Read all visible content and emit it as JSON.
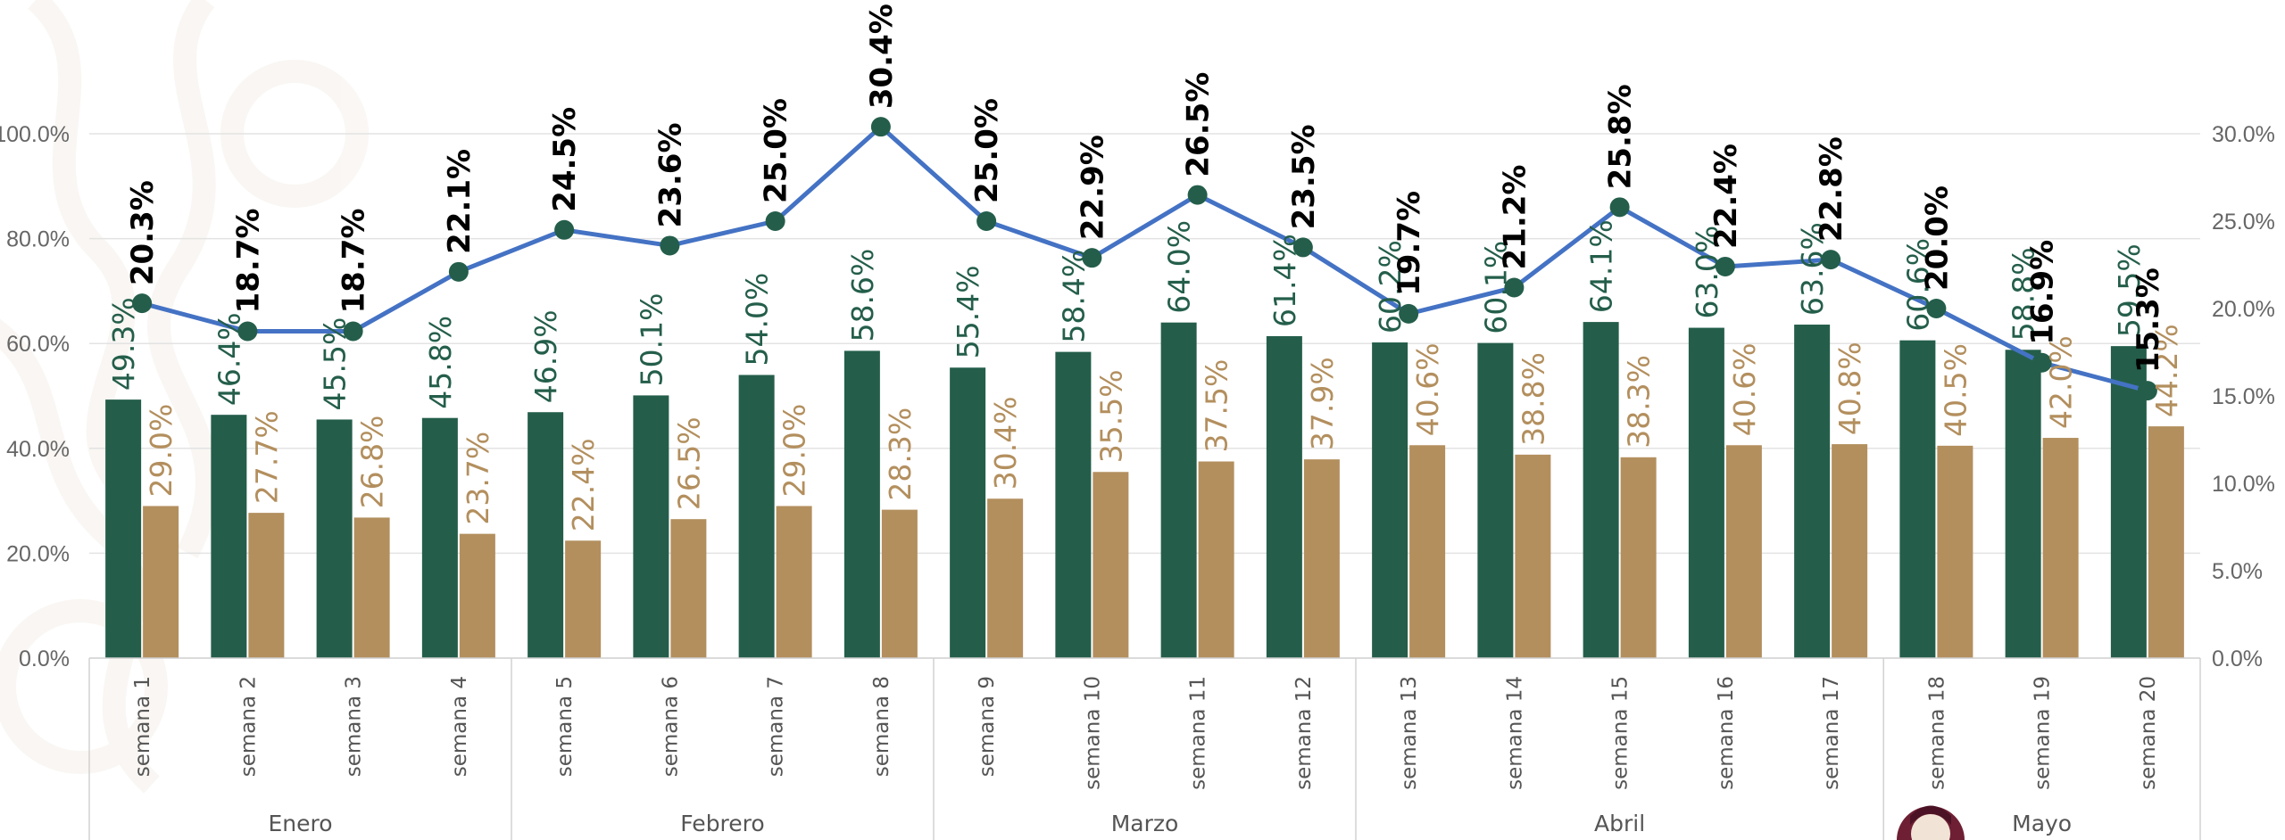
{
  "chart_data": {
    "type": "bar",
    "categories": [
      "semana 1",
      "semana 2",
      "semana 3",
      "semana 4",
      "semana 5",
      "semana 6",
      "semana 7",
      "semana 8",
      "semana 9",
      "semana 10",
      "semana 11",
      "semana 12",
      "semana 13",
      "semana 14",
      "semana 15",
      "semana 16",
      "semana 17",
      "semana 18",
      "semana 19",
      "semana 20"
    ],
    "category_labels": [
      "20.3%",
      "18.7%",
      "18.7%",
      "22.1%",
      "24.5%",
      "23.6%",
      "25.0%",
      "30.4%",
      "25.0%",
      "22.9%",
      "26.5%",
      "23.5%",
      "19.7%",
      "21.2%",
      "25.8%",
      "22.4%",
      "22.8%",
      "20.0%",
      "16.9%",
      "15.3%"
    ],
    "groups": [
      {
        "label": "Enero",
        "count": 4
      },
      {
        "label": "Febrero",
        "count": 4
      },
      {
        "label": "Marzo",
        "count": 4
      },
      {
        "label": "Abril",
        "count": 5
      },
      {
        "label": "Mayo",
        "count": 3
      }
    ],
    "series": [
      {
        "type": "bar",
        "axis": "left",
        "color": "#245e4b",
        "values": [
          49.3,
          46.4,
          45.5,
          45.8,
          46.9,
          50.1,
          54.0,
          58.6,
          55.4,
          58.4,
          64.0,
          61.4,
          60.2,
          60.1,
          64.1,
          63.0,
          63.6,
          60.6,
          58.8,
          59.5
        ],
        "labels": [
          "49.3%",
          "46.4%",
          "45.5%",
          "45.8%",
          "46.9%",
          "50.1%",
          "54.0%",
          "58.6%",
          "55.4%",
          "58.4%",
          "64.0%",
          "61.4%",
          "60.2%",
          "60.1%",
          "64.1%",
          "63.0%",
          "63.6%",
          "60.6%",
          "58.8%",
          "59.5%"
        ]
      },
      {
        "type": "bar",
        "axis": "left",
        "color": "#b38f5e",
        "values": [
          29.0,
          27.7,
          26.8,
          23.7,
          22.4,
          26.5,
          29.0,
          28.3,
          30.4,
          35.5,
          37.5,
          37.9,
          40.6,
          38.8,
          38.3,
          40.6,
          40.8,
          40.5,
          42.0,
          44.2
        ],
        "labels": [
          "29.0%",
          "27.7%",
          "26.8%",
          "23.7%",
          "22.4%",
          "26.5%",
          "29.0%",
          "28.3%",
          "30.4%",
          "35.5%",
          "37.5%",
          "37.9%",
          "40.6%",
          "38.8%",
          "38.3%",
          "40.6%",
          "40.8%",
          "40.5%",
          "42.0%",
          "44.2%"
        ]
      },
      {
        "type": "line",
        "axis": "right",
        "color": "#4472c4",
        "marker_color": "#245e4b",
        "values": [
          20.3,
          18.7,
          18.7,
          22.1,
          24.5,
          23.6,
          25.0,
          30.4,
          25.0,
          22.9,
          26.5,
          23.5,
          19.7,
          21.2,
          25.8,
          22.4,
          22.8,
          20.0,
          16.9,
          15.3
        ]
      }
    ],
    "y_left": {
      "ylim": [
        0,
        100
      ],
      "ticks": [
        "0.0%",
        "20.0%",
        "40.0%",
        "60.0%",
        "80.0%",
        "100.0%"
      ],
      "tick_values": [
        0,
        20,
        40,
        60,
        80,
        100
      ]
    },
    "y_right": {
      "ylim": [
        0,
        30
      ],
      "ticks": [
        "0.0%",
        "5.0%",
        "10.0%",
        "15.0%",
        "20.0%",
        "25.0%",
        "30.0%"
      ],
      "tick_values": [
        0,
        5,
        10,
        15,
        20,
        25,
        30
      ]
    },
    "grid": true,
    "legend": "none"
  }
}
